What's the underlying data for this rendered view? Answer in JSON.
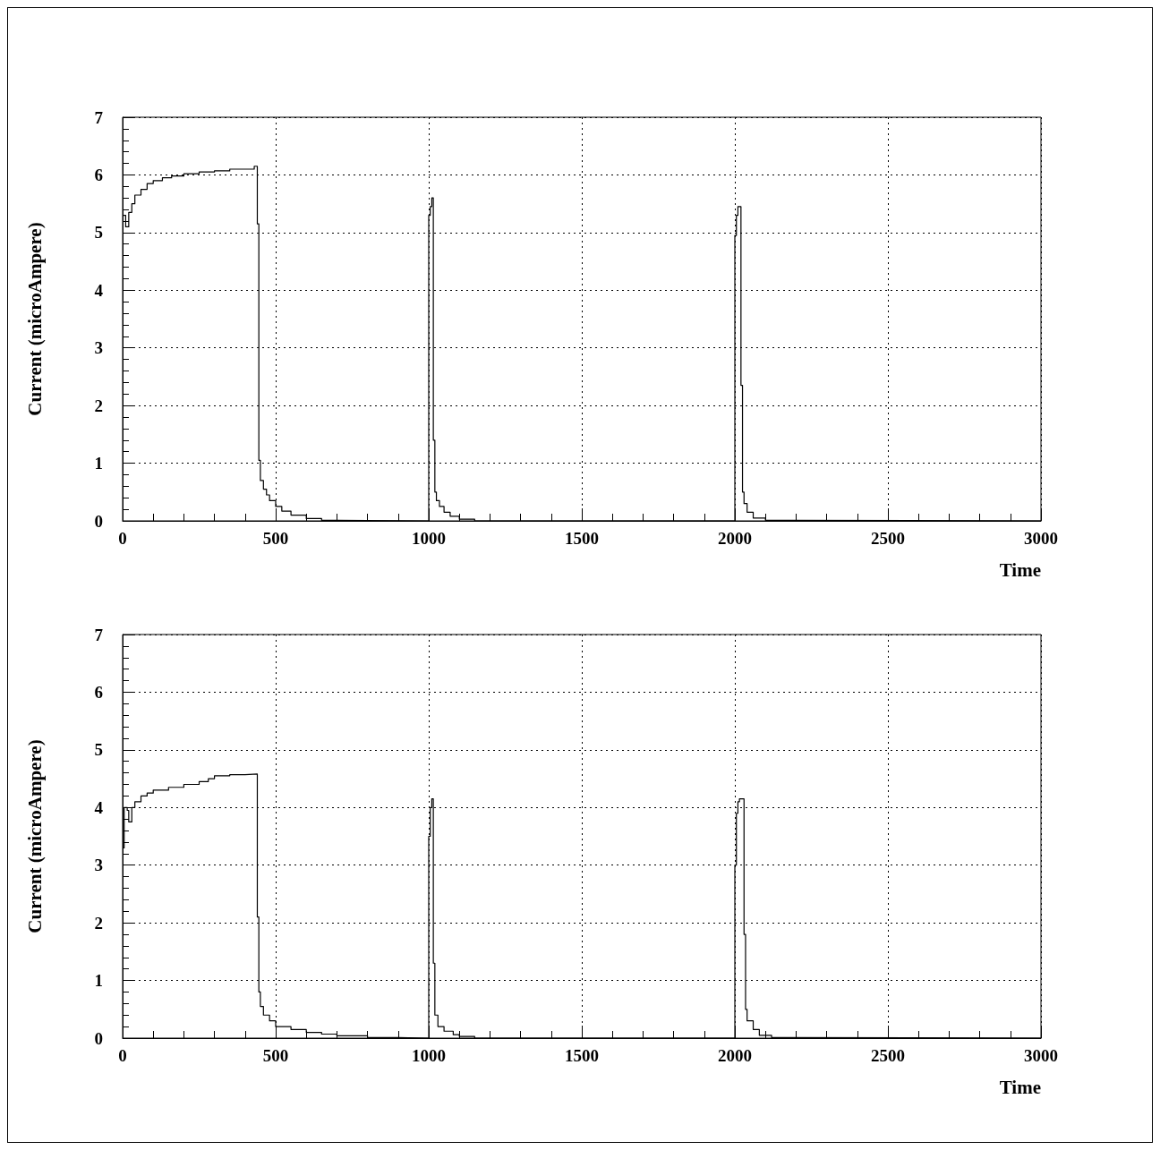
{
  "chart_data": [
    {
      "type": "step",
      "xlabel": "Time",
      "ylabel": "Current (microAmpere)",
      "xlim": [
        0,
        3000
      ],
      "xticks": [
        0,
        500,
        1000,
        1500,
        2000,
        2500,
        3000
      ],
      "ylim": [
        0,
        7
      ],
      "yticks": [
        0,
        1,
        2,
        3,
        4,
        5,
        6,
        7
      ],
      "grid": true,
      "marker": "none",
      "series": [
        {
          "color": "#000000",
          "x": [
            0,
            10,
            20,
            30,
            40,
            60,
            80,
            100,
            130,
            160,
            200,
            250,
            300,
            350,
            400,
            430,
            440,
            445,
            450,
            460,
            470,
            480,
            500,
            520,
            550,
            600,
            650,
            700,
            1000,
            1005,
            1010,
            1015,
            1020,
            1025,
            1035,
            1050,
            1070,
            1100,
            1150,
            2000,
            2005,
            2010,
            2020,
            2025,
            2030,
            2040,
            2060,
            2100,
            2170,
            3000
          ],
          "values": [
            5.3,
            5.1,
            5.35,
            5.5,
            5.65,
            5.75,
            5.85,
            5.9,
            5.95,
            5.98,
            6.02,
            6.05,
            6.07,
            6.1,
            6.1,
            6.15,
            5.15,
            1.05,
            0.7,
            0.55,
            0.45,
            0.35,
            0.25,
            0.17,
            0.1,
            0.04,
            0.01,
            0,
            5.3,
            5.45,
            5.6,
            1.4,
            0.5,
            0.35,
            0.25,
            0.15,
            0.08,
            0.03,
            0,
            4.95,
            5.3,
            5.45,
            2.35,
            0.5,
            0.3,
            0.15,
            0.05,
            0.01,
            0,
            0
          ]
        }
      ]
    },
    {
      "type": "step",
      "xlabel": "Time",
      "ylabel": "Current (microAmpere)",
      "xlim": [
        0,
        3000
      ],
      "xticks": [
        0,
        500,
        1000,
        1500,
        2000,
        2500,
        3000
      ],
      "ylim": [
        0,
        7
      ],
      "yticks": [
        0,
        1,
        2,
        3,
        4,
        5,
        6,
        7
      ],
      "grid": true,
      "marker": "none",
      "series": [
        {
          "color": "#000000",
          "x": [
            0,
            5,
            15,
            20,
            30,
            40,
            60,
            80,
            100,
            150,
            200,
            250,
            280,
            300,
            350,
            400,
            440,
            445,
            450,
            460,
            480,
            500,
            550,
            600,
            650,
            700,
            800,
            900,
            1000,
            1005,
            1010,
            1015,
            1020,
            1030,
            1050,
            1080,
            1100,
            1150,
            2000,
            2005,
            2010,
            2015,
            2030,
            2035,
            2040,
            2060,
            2080,
            2120,
            2150,
            3000
          ],
          "values": [
            3.3,
            4.0,
            3.95,
            3.75,
            4.0,
            4.1,
            4.2,
            4.25,
            4.3,
            4.35,
            4.4,
            4.45,
            4.5,
            4.55,
            4.57,
            4.58,
            2.1,
            0.8,
            0.55,
            0.4,
            0.3,
            0.2,
            0.15,
            0.1,
            0.07,
            0.04,
            0.01,
            0,
            3.5,
            4.0,
            4.15,
            1.3,
            0.4,
            0.2,
            0.12,
            0.06,
            0.03,
            0,
            3.0,
            3.9,
            4.1,
            4.15,
            1.8,
            0.5,
            0.3,
            0.15,
            0.05,
            0.01,
            0,
            0
          ]
        }
      ]
    }
  ]
}
